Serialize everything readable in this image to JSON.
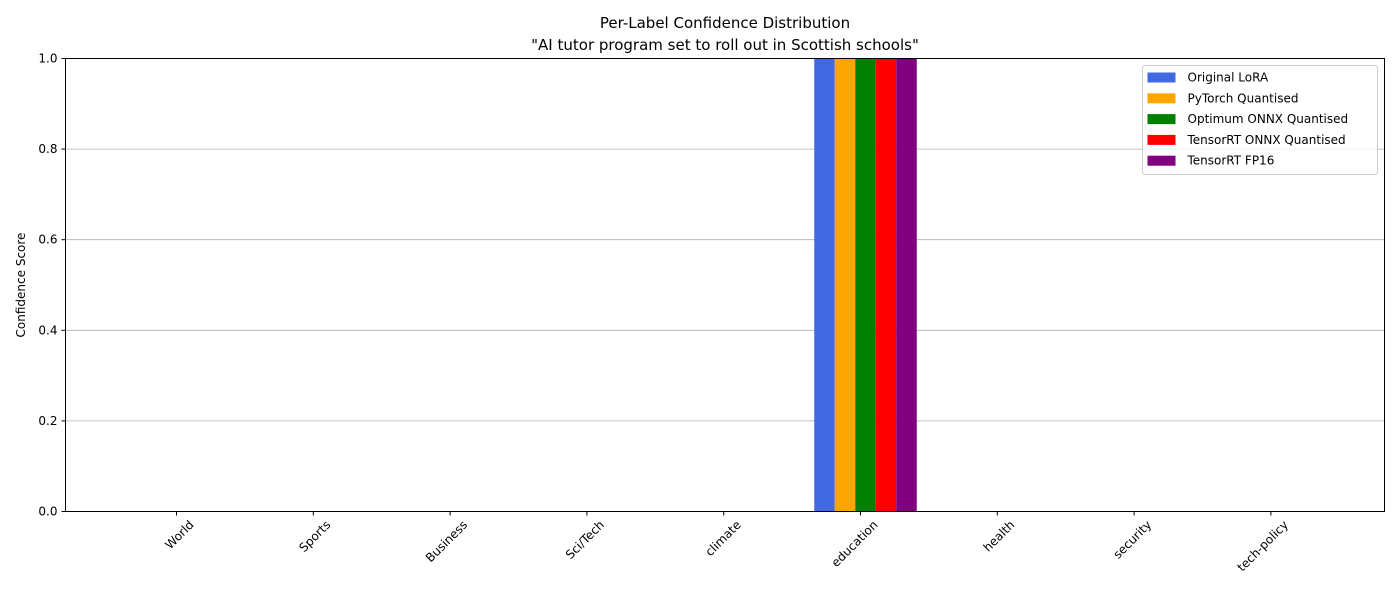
{
  "chart_data": {
    "type": "bar",
    "title": "Per-Label Confidence Distribution",
    "subtitle": "\"AI tutor program set to roll out in Scottish schools\"",
    "xlabel": "",
    "ylabel": "Confidence Score",
    "ylim": [
      0,
      1
    ],
    "yticks": [
      0.0,
      0.2,
      0.4,
      0.6,
      0.8,
      1.0
    ],
    "grid": "y",
    "legend_position": "top-right",
    "categories": [
      "World",
      "Sports",
      "Business",
      "Sci/Tech",
      "climate",
      "education",
      "health",
      "security",
      "tech-policy"
    ],
    "series": [
      {
        "name": "Original LoRA",
        "color": "#4169e1",
        "values": [
          0,
          0,
          0,
          0,
          0,
          1.0,
          0,
          0,
          0
        ]
      },
      {
        "name": "PyTorch Quantised",
        "color": "#ffa500",
        "values": [
          0,
          0,
          0,
          0,
          0,
          1.0,
          0,
          0,
          0
        ]
      },
      {
        "name": "Optimum ONNX Quantised",
        "color": "#008000",
        "values": [
          0,
          0,
          0,
          0,
          0,
          1.0,
          0,
          0,
          0
        ]
      },
      {
        "name": "TensorRT ONNX Quantised",
        "color": "#ff0000",
        "values": [
          0,
          0,
          0,
          0,
          0,
          1.0,
          0,
          0,
          0
        ]
      },
      {
        "name": "TensorRT FP16",
        "color": "#800080",
        "values": [
          0,
          0,
          0,
          0,
          0,
          1.0,
          0,
          0,
          0
        ]
      }
    ]
  }
}
